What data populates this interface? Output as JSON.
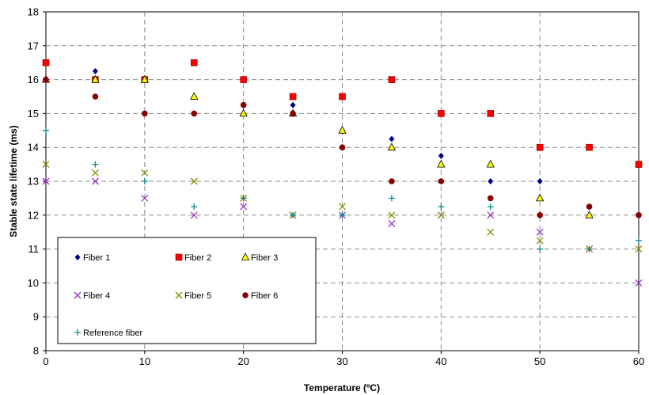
{
  "chart_data": {
    "type": "scatter",
    "xlabel": "Temperature (ºC)",
    "ylabel": "Stable state lifetime (ms)",
    "xlim": [
      0,
      60
    ],
    "ylim": [
      8,
      18
    ],
    "x_ticks": [
      0,
      10,
      20,
      30,
      40,
      50,
      60
    ],
    "y_ticks": [
      8,
      9,
      10,
      11,
      12,
      13,
      14,
      15,
      16,
      17,
      18
    ],
    "grid": "dashed vertical and horizontal",
    "legend_position": "bottom-left",
    "series": [
      {
        "name": "Fiber 1",
        "marker": "diamond",
        "color": "#00008B",
        "x": [
          0,
          5,
          10,
          15,
          20,
          25,
          30,
          35,
          40,
          45,
          50,
          55,
          60
        ],
        "y": [
          16.0,
          16.25,
          16.0,
          15.5,
          15.0,
          15.25,
          14.5,
          14.25,
          13.75,
          13.0,
          13.0,
          12.0,
          12.0
        ]
      },
      {
        "name": "Fiber 2",
        "marker": "square",
        "color": "#FF0000",
        "x": [
          0,
          5,
          10,
          15,
          20,
          25,
          30,
          35,
          40,
          45,
          50,
          55,
          60
        ],
        "y": [
          16.5,
          16.0,
          16.0,
          16.5,
          16.0,
          15.5,
          15.5,
          16.0,
          15.0,
          15.0,
          14.0,
          14.0,
          13.5
        ]
      },
      {
        "name": "Fiber 3",
        "marker": "triangle",
        "color": "#FFFF00",
        "x": [
          0,
          5,
          10,
          15,
          20,
          25,
          30,
          35,
          40,
          45,
          50,
          55
        ],
        "y": [
          16.0,
          16.0,
          16.0,
          15.5,
          15.0,
          15.0,
          14.5,
          14.0,
          13.5,
          13.5,
          12.5,
          12.0
        ]
      },
      {
        "name": "Fiber 4",
        "marker": "x",
        "color": "#9932CC",
        "x": [
          0,
          5,
          10,
          15,
          20,
          25,
          30,
          35,
          40,
          45,
          50,
          55,
          60
        ],
        "y": [
          13.0,
          13.0,
          12.5,
          12.0,
          12.25,
          12.0,
          12.0,
          11.75,
          12.0,
          12.0,
          11.5,
          11.0,
          10.0
        ]
      },
      {
        "name": "Fiber 5",
        "marker": "x",
        "color": "#8B8B00",
        "x": [
          0,
          5,
          10,
          15,
          20,
          25,
          30,
          35,
          40,
          45,
          50,
          55,
          60
        ],
        "y": [
          13.5,
          13.25,
          13.25,
          13.0,
          12.5,
          12.0,
          12.25,
          12.0,
          12.0,
          11.5,
          11.25,
          11.0,
          11.0
        ]
      },
      {
        "name": "Fiber 6",
        "marker": "circle",
        "color": "#8B0000",
        "x": [
          0,
          5,
          10,
          15,
          20,
          25,
          30,
          35,
          40,
          45,
          50,
          55,
          60
        ],
        "y": [
          16.0,
          15.5,
          15.0,
          15.0,
          15.25,
          15.0,
          14.0,
          13.0,
          13.0,
          12.5,
          12.0,
          12.25,
          12.0
        ]
      },
      {
        "name": "Reference fiber",
        "marker": "plus",
        "color": "#008B8B",
        "x": [
          0,
          5,
          10,
          15,
          20,
          25,
          30,
          35,
          40,
          45,
          50,
          55,
          60
        ],
        "y": [
          14.5,
          13.5,
          13.0,
          12.25,
          12.5,
          12.0,
          12.0,
          12.5,
          12.25,
          12.25,
          11.0,
          11.0,
          11.25
        ]
      }
    ]
  }
}
